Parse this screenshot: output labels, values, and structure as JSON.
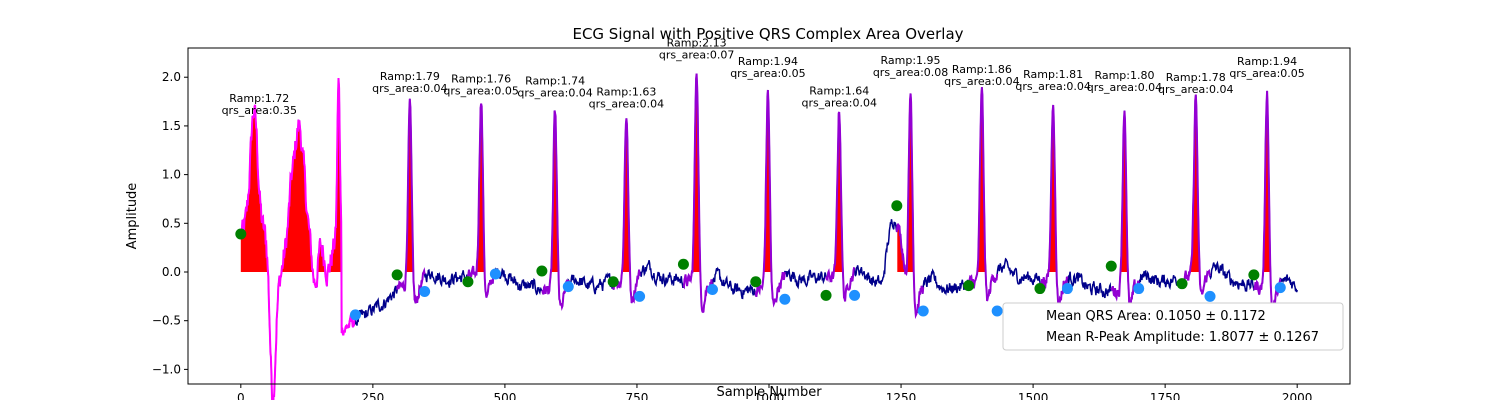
{
  "chart_data": {
    "type": "line",
    "title": "ECG Signal with Positive QRS Complex Area Overlay",
    "xlabel": "Sample Number",
    "ylabel": "Amplitude",
    "xlim": [
      -100,
      2100
    ],
    "ylim": [
      -1.15,
      2.3
    ],
    "xticks": [
      0,
      250,
      500,
      750,
      1000,
      1250,
      1500,
      1750,
      2000
    ],
    "yticks": [
      -1.0,
      -0.5,
      0.0,
      0.5,
      1.0,
      1.5,
      2.0
    ],
    "xtick_labels": [
      "0",
      "250",
      "500",
      "750",
      "1000",
      "1250",
      "1500",
      "1750",
      "2000"
    ],
    "ytick_labels": [
      "−1.0",
      "−0.5",
      "0.0",
      "0.5",
      "1.0",
      "1.5",
      "2.0"
    ],
    "grid": false,
    "colors": {
      "signal": "#00008b",
      "qrs_segment": "#9400d3",
      "noisy_segment": "#ff00ff",
      "area_fill": "#ff0000",
      "onset_marker": "#008000",
      "offset_marker": "#1e90ff"
    },
    "beats": [
      {
        "r": 320,
        "amp": 1.79,
        "area": 0.04,
        "label1": "Ramp:1.79",
        "label2": "qrs_area:0.04",
        "on": [
          296,
          -0.03
        ],
        "off": [
          348,
          -0.2
        ]
      },
      {
        "r": 455,
        "amp": 1.76,
        "area": 0.05,
        "label1": "Ramp:1.76",
        "label2": "qrs_area:0.05",
        "on": [
          430,
          -0.1
        ],
        "off": [
          482,
          -0.02
        ]
      },
      {
        "r": 595,
        "amp": 1.74,
        "area": 0.04,
        "label1": "Ramp:1.74",
        "label2": "qrs_area:0.04",
        "on": [
          570,
          0.01
        ],
        "off": [
          620,
          -0.15
        ]
      },
      {
        "r": 730,
        "amp": 1.63,
        "area": 0.04,
        "label1": "Ramp:1.63",
        "label2": "qrs_area:0.04",
        "on": [
          705,
          -0.1
        ],
        "off": [
          755,
          -0.25
        ]
      },
      {
        "r": 863,
        "amp": 2.13,
        "area": 0.07,
        "label1": "Ramp:2.13",
        "label2": "qrs_area:0.07",
        "on": [
          838,
          0.08
        ],
        "off": [
          893,
          -0.18
        ]
      },
      {
        "r": 998,
        "amp": 1.94,
        "area": 0.05,
        "label1": "Ramp:1.94",
        "label2": "qrs_area:0.05",
        "on": [
          975,
          -0.1
        ],
        "off": [
          1030,
          -0.28
        ]
      },
      {
        "r": 1133,
        "amp": 1.64,
        "area": 0.04,
        "label1": "Ramp:1.64",
        "label2": "qrs_area:0.04",
        "on": [
          1108,
          -0.24
        ],
        "off": [
          1162,
          -0.24
        ]
      },
      {
        "r": 1268,
        "amp": 1.95,
        "area": 0.08,
        "label1": "Ramp:1.95",
        "label2": "qrs_area:0.08",
        "on": [
          1242,
          0.68
        ],
        "off": [
          1292,
          -0.4
        ]
      },
      {
        "r": 1403,
        "amp": 1.86,
        "area": 0.04,
        "label1": "Ramp:1.86",
        "label2": "qrs_area:0.04",
        "on": [
          1378,
          -0.14
        ],
        "off": [
          1432,
          -0.4
        ]
      },
      {
        "r": 1538,
        "amp": 1.81,
        "area": 0.04,
        "label1": "Ramp:1.81",
        "label2": "qrs_area:0.04",
        "on": [
          1513,
          -0.17
        ],
        "off": [
          1565,
          -0.17
        ]
      },
      {
        "r": 1673,
        "amp": 1.8,
        "area": 0.04,
        "label1": "Ramp:1.80",
        "label2": "qrs_area:0.04",
        "on": [
          1648,
          0.06
        ],
        "off": [
          1700,
          -0.17
        ]
      },
      {
        "r": 1808,
        "amp": 1.78,
        "area": 0.04,
        "label1": "Ramp:1.78",
        "label2": "qrs_area:0.04",
        "on": [
          1782,
          -0.12
        ],
        "off": [
          1835,
          -0.25
        ]
      },
      {
        "r": 1943,
        "amp": 1.94,
        "area": 0.05,
        "label1": "Ramp:1.94",
        "label2": "qrs_area:0.05",
        "on": [
          1918,
          -0.03
        ],
        "off": [
          1968,
          -0.16
        ]
      }
    ],
    "first_beat": {
      "label1": "Ramp:1.72",
      "label2": "qrs_area:0.35",
      "amp": 1.72,
      "area": 0.35,
      "on": [
        0,
        0.39
      ],
      "off": [
        217,
        -0.44
      ]
    },
    "legend": {
      "position": "lower-right",
      "entries": [
        "Mean QRS Area: 0.1050 ± 0.1172",
        "Mean R-Peak Amplitude: 1.8077 ± 0.1267"
      ]
    }
  }
}
